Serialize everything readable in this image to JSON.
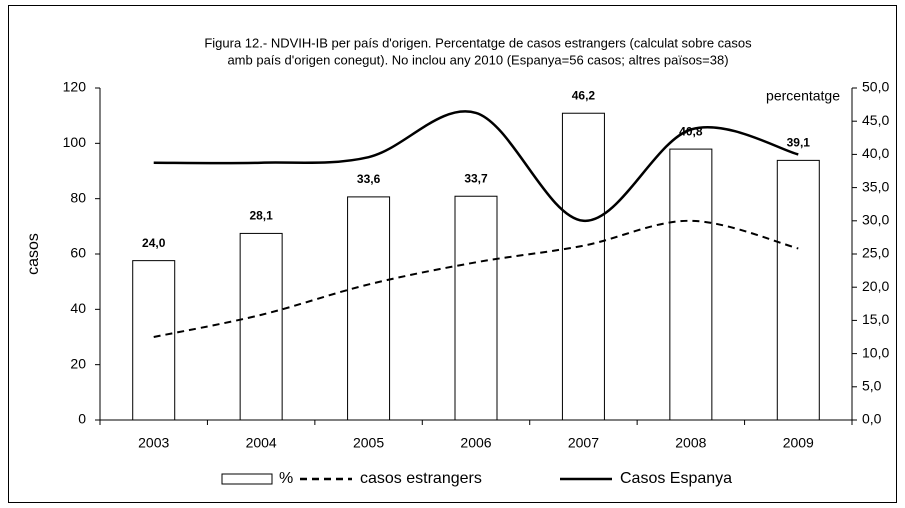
{
  "chart_data": {
    "type": "bar-line",
    "title": [
      "Figura 12.- NDVIH-IB per país d'origen. Percentatge de casos estrangers (calculat sobre casos",
      "amb país d'origen conegut). No inclou any 2010 (Espanya=56 casos; altres països=38)"
    ],
    "y_label": "casos",
    "y2_label": "percentatge",
    "categories": [
      "2003",
      "2004",
      "2005",
      "2006",
      "2007",
      "2008",
      "2009"
    ],
    "series": [
      {
        "name": "%",
        "type": "bar",
        "axis": "y2",
        "color": "#ffffff",
        "values": [
          24.0,
          28.1,
          33.6,
          33.7,
          46.2,
          40.8,
          39.1
        ],
        "value_labels": [
          "24,0",
          "28,1",
          "33,6",
          "33,7",
          "46,2",
          "40,8",
          "39,1"
        ]
      },
      {
        "name": "casos estrangers",
        "type": "line",
        "dash": true,
        "color": "#000000",
        "values": [
          30,
          38,
          49,
          57,
          63,
          72,
          62
        ]
      },
      {
        "name": "Casos Espanya",
        "type": "line",
        "dash": false,
        "color": "#000000",
        "values": [
          93,
          93,
          95,
          111,
          72,
          105,
          96
        ]
      }
    ],
    "ylim": [
      0,
      120
    ],
    "yticks": [
      0,
      20,
      40,
      60,
      80,
      100,
      120
    ],
    "y2lim": [
      0,
      50
    ],
    "y2ticks": [
      {
        "value": 0,
        "label": "0,0"
      },
      {
        "value": 5,
        "label": "5,0"
      },
      {
        "value": 10,
        "label": "10,0"
      },
      {
        "value": 15,
        "label": "15,0"
      },
      {
        "value": 20,
        "label": "20,0"
      },
      {
        "value": 25,
        "label": "25,0"
      },
      {
        "value": 30,
        "label": "30,0"
      },
      {
        "value": 35,
        "label": "35,0"
      },
      {
        "value": 40,
        "label": "40,0"
      },
      {
        "value": 45,
        "label": "45,0"
      },
      {
        "value": 50,
        "label": "50,0"
      }
    ],
    "grid": false,
    "legend": "bottom"
  }
}
